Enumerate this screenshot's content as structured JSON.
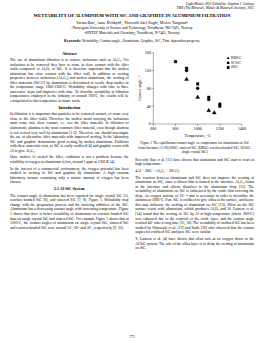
{
  "chart_data": {
    "type": "scatter",
    "x_label": "Temperature, °C",
    "y_label": "Contact angle, °",
    "xlim": [
      600,
      1400
    ],
    "xticks": [
      600,
      800,
      1000,
      1200,
      1400
    ],
    "ylim": [
      0,
      160
    ],
    "yticks": [
      0,
      40,
      80,
      120,
      160
    ],
    "legend": "upper right",
    "series": [
      {
        "name": "SSiC",
        "color": "#000000",
        "marker": "square",
        "x": [
          800,
          900,
          1000,
          1100,
          1200
        ],
        "values": [
          140,
          125,
          90,
          60,
          40
        ]
      },
      {
        "name": "RBSiC",
        "color": "#000000",
        "marker": "triangle",
        "x": [
          900,
          1000,
          1100,
          1150
        ],
        "values": [
          100,
          60,
          30,
          25
        ]
      },
      {
        "name": "SCSiC",
        "color": "#000000",
        "marker": "circle",
        "x": [
          900,
          1000,
          1100,
          1200
        ],
        "values": [
          120,
          80,
          55,
          45
        ]
      }
    ]
  },
  "document": {
    "header": [
      "Light Metals 2011 Edited by: Stephen J. Lindsay",
      "TMS (The Minerals, Metals & Materials Society), 2011"
    ],
    "title": "WETTABILITY OF ALUMINIUM WITH SIC AND GRAPHITE IN ALUMINIUM FILTRATION",
    "authors": "Sarina Bao¹, Anne Kvithyld¹, Thorvald Abel Engh², Merete Tangstad²",
    "affiliations": [
      "¹Norwegian University of Science and Technology, Trondheim, NO-7491, Norway",
      "²SINTEF Materials and Chemistry, Trondheim, N-7465, Norway"
    ],
    "keywords_label": "Keywords:",
    "keywords": "Wettability, Contact angle, Aluminium, Graphite, SiC, Time dependent property.",
    "left": [
      {
        "heading": "Abstract",
        "paragraphs": [
          "The use of aluminium filtration is to remove inclusions such as Al₄C₃. For inclusions to be removed they have to come in close contact with the filter walls composed of Al₂O₃ or SiC. It is therefore important that the molten aluminium has close contact with the filter wall. In addition to wetting properties between inclusions (Al₄C₃) and molten aluminium, the wetting of filter materials (SiC/C) by aluminium is determined in sessile drop studies in the temperature range 1000-1300°C. Wettability changes with time in three successive steps and improves with time. To describe wettability at filtration temperatures employed in the industry of around 700°C, the results will be extrapolated to this temperature in future work."
        ]
      },
      {
        "heading": "Introduction",
        "paragraphs": [
          "In filtration it is important that particles to be removed contact, or come very close to the filter walls. Therefore the molten metal carrying the inclusions must come into close contact, i.e. wet the filter material. In filtration of aluminium, alumina is the most common filter material, even though alumina is not wetted very well by aluminium [1-3]. Therefore one should investigate the use of alternative filter materials with improved wetting. In the laboratory SiC and graphite demonstrate good wetting by molten aluminium. Problems with these materials exist, as SiC is easily oxidized [4] and graphite reacts with Al to give Al₄C₃.",
          "Once molten Al wetted the filter, oxidation is not a problem because the solubility of oxygen in aluminium is low, around 1 ppm at 1300 K [4].",
          "In the interest of a commercial environment, the oxygen potential has been studied in wetting of SiC and graphite by aluminium. A high vacuum laboratory furnace containing only a minute amount of oxygen has been chosen."
        ]
      },
      {
        "heading": "2.1 Al-SiC System",
        "paragraphs": [
          "The contact angle of aluminium has been reported for single crystal SiC [5], reaction bonded SiC [6], and sintered SiC [7, 8], Figure 1. Wettability may change with the preparation process and the sintering additives of the SiC. Aluminium has a decreasing contact angle with increasing temperature. Figure 1 shows that there is better wettability of aluminium on reaction bonded SiC than on single crystal SiC and sintered SiC. For example Figure 1 shows that at 1100°C, the contact angles of aluminium on single crystal SiC, sintered SiC and reaction bonded SiC were around 55°, 60° and 30°, respectively [9, 10]."
        ]
      }
    ],
    "caption": "Figure 1 The equilibrium contact angle vs. temperature for aluminium on SiC from literature [5-18] (SSiC: sintered SiC, RBSiC: reaction bonded SiC, SCSiC: single crystal SiC)",
    "right": [
      "Recently Bao et al. [11] have shown that aluminium and SiC start to react at high temperature:",
      "4Al + 3SiC = Al₄C₃ + 3Si        (1)",
      "The reaction between aluminium and SiC does not improve the wetting of aluminium on SiC, since a silicon film is formed at the interface. Al₄C₃ forms at the interface and silicon dissolves in the aluminium drop [12]. The wettability of aluminium on SiC is influenced by the oxide film covering the drop. An oxygen activity of 10⁻⁴⁸ atm is necessary in order to deoxidize the alumina at 1000°C. Pure SiC is oxidized to give silica at the surface, and hence this may influence the wetting of aluminium on SiC [13]. Silica on the SiC surface reacts with aluminium, which produces Al₂O₃ and Si. Laurent et al. [14] found that the wetting of SiC by Al at high temperature (above 900°C) was enhanced due to the removal of the oxide layer, and the contact angle reached 40° after a long time [15, 16]. The wettability of oxidized SiC has been studied by Shinozaki et al. [17] and Rado [18] who observed that the contact angles for oxidized SiC and pure SiC were similar.",
      "V. Laurent et al. [4] have shown that silica acts as an oxygen donor to the Al/SiC system. The role of the silica layer is to delay the wetting of aluminium on SiC."
    ],
    "page_number": "775"
  }
}
